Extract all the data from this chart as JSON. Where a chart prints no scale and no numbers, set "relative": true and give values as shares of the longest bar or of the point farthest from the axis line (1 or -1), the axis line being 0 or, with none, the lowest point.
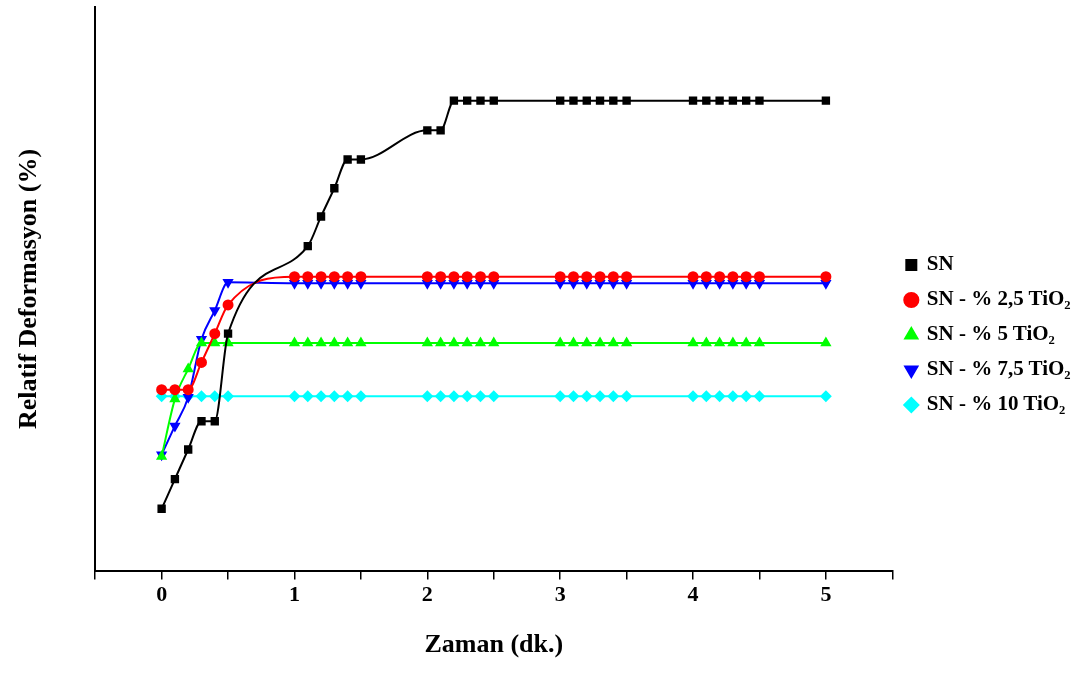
{
  "chart_data": {
    "type": "line",
    "xlabel": "Zaman (dk.)",
    "ylabel": "Relatif Deformasyon (%)",
    "relative": true,
    "legend": "right",
    "grid": false,
    "xlim": [
      -0.5,
      5.5
    ],
    "xticks": [
      {
        "value": -0.5,
        "label": null
      },
      0,
      {
        "value": 0.5,
        "label": null
      },
      1,
      {
        "value": 1.5,
        "label": null
      },
      2,
      {
        "value": 2.5,
        "label": null
      },
      3,
      {
        "value": 3.5,
        "label": null
      },
      4,
      {
        "value": 4.5,
        "label": null
      },
      5,
      {
        "value": 5.5,
        "label": null
      }
    ],
    "series": [
      {
        "name": "SN",
        "color": "#000000",
        "marker": "square",
        "x": [
          0,
          0.1,
          0.2,
          0.3,
          0.4,
          0.5,
          1.1,
          1.2,
          1.3,
          1.4,
          1.5,
          2,
          2.1,
          2.2,
          2.3,
          2.4,
          2.5,
          3,
          3.1,
          3.2,
          3.3,
          3.4,
          3.5,
          4,
          4.1,
          4.2,
          4.3,
          4.4,
          4.5,
          5
        ],
        "values": [
          0.133,
          0.196,
          0.259,
          0.319,
          0.319,
          0.505,
          0.691,
          0.754,
          0.814,
          0.875,
          0.875,
          0.937,
          0.937,
          1,
          1,
          1,
          1,
          1,
          1,
          1,
          1,
          1,
          1,
          1,
          1,
          1,
          1,
          1,
          1,
          1
        ]
      },
      {
        "name": "SN - % 2,5 TiO₂",
        "color": "#ff0000",
        "marker": "circle",
        "x": [
          0,
          0.1,
          0.2,
          0.3,
          0.4,
          0.5,
          1,
          1.1,
          1.2,
          1.3,
          1.4,
          1.5,
          2,
          2.1,
          2.2,
          2.3,
          2.4,
          2.5,
          3,
          3.1,
          3.2,
          3.3,
          3.4,
          3.5,
          4,
          4.1,
          4.2,
          4.3,
          4.4,
          4.5,
          5
        ],
        "values": [
          0.386,
          0.386,
          0.386,
          0.444,
          0.505,
          0.566,
          0.626,
          0.626,
          0.626,
          0.626,
          0.626,
          0.626,
          0.626,
          0.626,
          0.626,
          0.626,
          0.626,
          0.626,
          0.626,
          0.626,
          0.626,
          0.626,
          0.626,
          0.626,
          0.626,
          0.626,
          0.626,
          0.626,
          0.626,
          0.626,
          0.626
        ]
      },
      {
        "name": "SN - % 5 TiO₂",
        "color": "#00ff00",
        "marker": "triangle",
        "x": [
          0,
          0.1,
          0.2,
          0.3,
          0.4,
          0.5,
          1,
          1.1,
          1.2,
          1.3,
          1.4,
          1.5,
          2,
          2.1,
          2.2,
          2.3,
          2.4,
          2.5,
          3,
          3.1,
          3.2,
          3.3,
          3.4,
          3.5,
          4,
          4.1,
          4.2,
          4.3,
          4.4,
          4.5,
          5
        ],
        "values": [
          0.244,
          0.366,
          0.43,
          0.485,
          0.485,
          0.485,
          0.485,
          0.485,
          0.485,
          0.485,
          0.485,
          0.485,
          0.485,
          0.485,
          0.485,
          0.485,
          0.485,
          0.485,
          0.485,
          0.485,
          0.485,
          0.485,
          0.485,
          0.485,
          0.485,
          0.485,
          0.485,
          0.485,
          0.485,
          0.485,
          0.485
        ]
      },
      {
        "name": "SN - % 7,5 TiO₂",
        "color": "#0000ff",
        "marker": "triangle-down",
        "x": [
          0,
          0.1,
          0.2,
          0.3,
          0.4,
          0.5,
          1,
          1.1,
          1.2,
          1.3,
          1.4,
          1.5,
          2,
          2.1,
          2.2,
          2.3,
          2.4,
          2.5,
          3,
          3.1,
          3.2,
          3.3,
          3.4,
          3.5,
          4,
          4.1,
          4.2,
          4.3,
          4.4,
          4.5,
          5
        ],
        "values": [
          0.248,
          0.309,
          0.37,
          0.493,
          0.554,
          0.614,
          0.612,
          0.612,
          0.612,
          0.612,
          0.612,
          0.612,
          0.612,
          0.612,
          0.612,
          0.612,
          0.612,
          0.612,
          0.612,
          0.612,
          0.612,
          0.612,
          0.612,
          0.612,
          0.612,
          0.612,
          0.612,
          0.612,
          0.612,
          0.612,
          0.612
        ]
      },
      {
        "name": "SN - % 10 TiO₂",
        "color": "#00ffff",
        "marker": "diamond",
        "x": [
          0,
          0.1,
          0.2,
          0.3,
          0.4,
          0.5,
          1,
          1.1,
          1.2,
          1.3,
          1.4,
          1.5,
          2,
          2.1,
          2.2,
          2.3,
          2.4,
          2.5,
          3,
          3.1,
          3.2,
          3.3,
          3.4,
          3.5,
          4,
          4.1,
          4.2,
          4.3,
          4.4,
          4.5,
          5
        ],
        "values": [
          0.372,
          0.372,
          0.372,
          0.372,
          0.372,
          0.372,
          0.372,
          0.372,
          0.372,
          0.372,
          0.372,
          0.372,
          0.372,
          0.372,
          0.372,
          0.372,
          0.372,
          0.372,
          0.372,
          0.372,
          0.372,
          0.372,
          0.372,
          0.372,
          0.372,
          0.372,
          0.372,
          0.372,
          0.372,
          0.372,
          0.372
        ]
      }
    ]
  }
}
